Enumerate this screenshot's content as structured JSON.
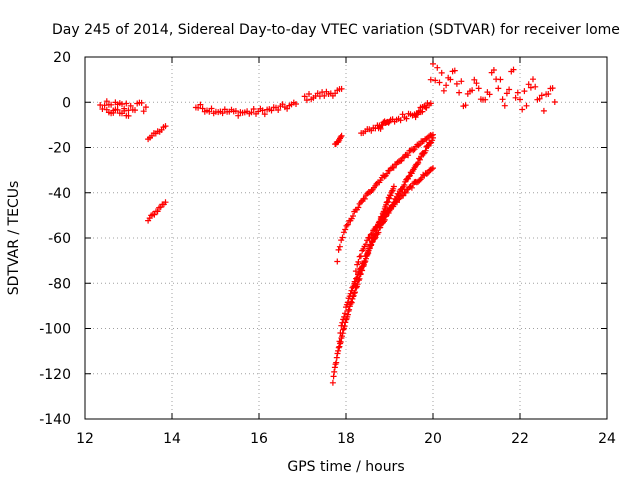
{
  "chart_data": {
    "type": "scatter",
    "title": "Day 245 of 2014, Sidereal Day-to-day VTEC variation (SDTVAR) for receiver lome",
    "xlabel": "GPS time / hours",
    "ylabel": "SDTVAR / TECUs",
    "xlim": [
      12,
      24
    ],
    "ylim": [
      -140,
      20
    ],
    "xticks": [
      12,
      14,
      16,
      18,
      20,
      22,
      24
    ],
    "yticks": [
      20,
      0,
      -20,
      -40,
      -60,
      -80,
      -100,
      -120,
      -140
    ],
    "grid": true,
    "marker": "+",
    "color": "#ff0000",
    "segments": [
      {
        "name": "seg-a1",
        "x0": 12.35,
        "y0": -2,
        "x1": 13.4,
        "y1": -2,
        "spread": 5
      },
      {
        "name": "seg-a2",
        "x0": 12.5,
        "y0": -4,
        "x1": 13.0,
        "y1": -5,
        "spread": 3
      },
      {
        "name": "seg-b",
        "x0": 13.45,
        "y0": -16,
        "x1": 13.85,
        "y1": -11,
        "spread": 1.5
      },
      {
        "name": "seg-c",
        "x0": 13.45,
        "y0": -52,
        "x1": 13.85,
        "y1": -44,
        "spread": 1.5
      },
      {
        "name": "seg-d",
        "x0": 14.55,
        "y0": -2,
        "x1": 16.85,
        "y1": -1,
        "spread": 3,
        "sag": -3
      },
      {
        "name": "seg-e",
        "x0": 17.05,
        "y0": 2,
        "x1": 17.9,
        "y1": 5,
        "spread": 3
      },
      {
        "name": "seg-f",
        "x0": 17.75,
        "y0": -19,
        "x1": 17.9,
        "y1": -15,
        "spread": 1
      },
      {
        "name": "seg-g",
        "x0": 18.35,
        "y0": -14,
        "x1": 19.0,
        "y1": -8,
        "spread": 2
      },
      {
        "name": "seg-h",
        "x0": 18.75,
        "y0": -11,
        "x1": 19.85,
        "y1": -2,
        "spread": 3
      },
      {
        "name": "seg-i",
        "x0": 19.6,
        "y0": -6,
        "x1": 19.95,
        "y1": 0,
        "spread": 2
      },
      {
        "name": "seg-j",
        "x0": 19.95,
        "y0": 9,
        "x1": 22.8,
        "y1": 2,
        "spread": 12,
        "noisy": true
      },
      {
        "name": "curve-1",
        "x0": 17.8,
        "y0": -71,
        "x1": 20.0,
        "y1": -14,
        "spread": 1.5,
        "curve": 0.55
      },
      {
        "name": "curve-2",
        "x0": 17.85,
        "y0": -105,
        "x1": 20.0,
        "y1": -16,
        "spread": 1.5,
        "curve": 0.7
      },
      {
        "name": "curve-3",
        "x0": 17.7,
        "y0": -124,
        "x1": 19.1,
        "y1": -37,
        "spread": 1.5,
        "curve": 0.75
      },
      {
        "name": "curve-4",
        "x0": 18.2,
        "y0": -80,
        "x1": 20.0,
        "y1": -29,
        "spread": 1.5,
        "curve": 0.55
      }
    ]
  }
}
